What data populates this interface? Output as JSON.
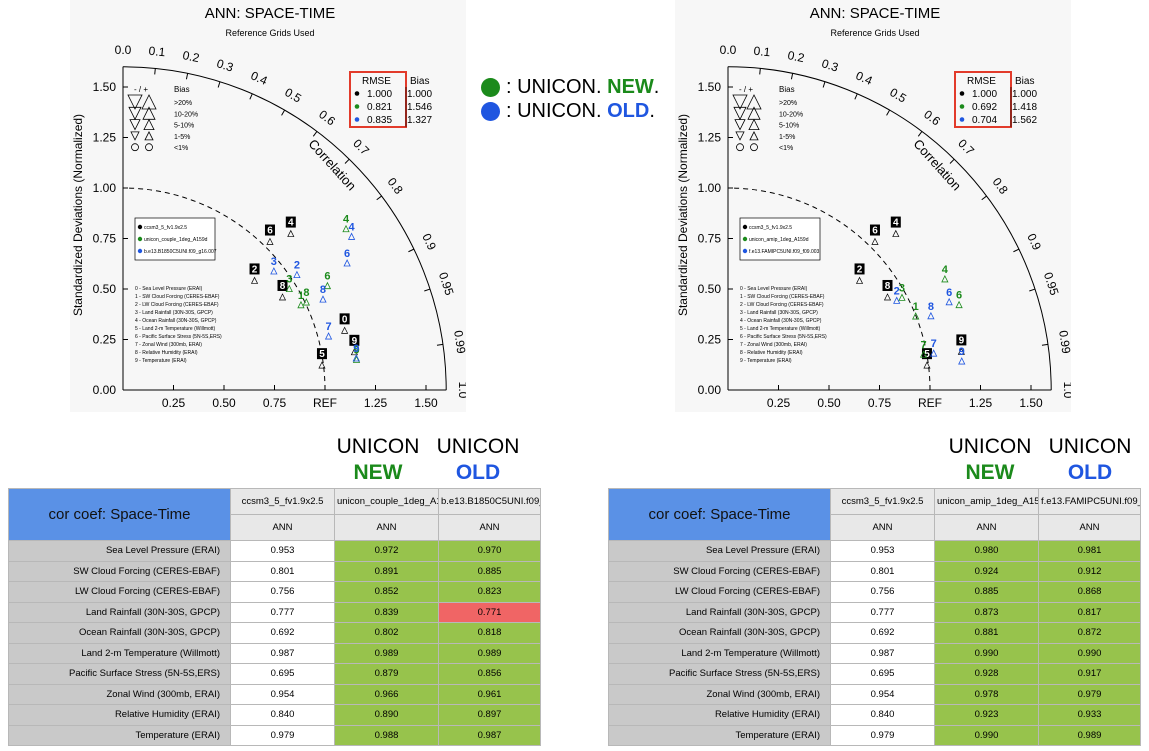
{
  "plots": [
    {
      "title": "ANN: SPACE-TIME",
      "subtitle": "Reference Grids Used",
      "ylabel": "Standardized Deviations (Normalized)",
      "corr_label": "Correlation",
      "ref_label": "REF",
      "x_ticks": [
        "0.25",
        "0.50",
        "0.75",
        "1.25",
        "1.50"
      ],
      "y_ticks": [
        "0.00",
        "0.25",
        "0.50",
        "0.75",
        "1.00",
        "1.25",
        "1.50"
      ],
      "corr_ticks": [
        "0.0",
        "0.1",
        "0.2",
        "0.3",
        "0.4",
        "0.5",
        "0.6",
        "0.7",
        "0.8",
        "0.9",
        "0.95",
        "0.99",
        "1.0"
      ],
      "bias_title": "Bias",
      "bias_header_sign": "- / +",
      "bias_levels": [
        ">20%",
        "10-20%",
        "5-10%",
        "1-5%",
        "<1%"
      ],
      "rmse_table": {
        "header": [
          "RMSE",
          "Bias"
        ],
        "rows": [
          {
            "rmse": "1.000",
            "bias": "1.000",
            "color": "#000000"
          },
          {
            "rmse": "0.821",
            "bias": "1.546",
            "color": "#1b8a1b"
          },
          {
            "rmse": "0.835",
            "bias": "1.327",
            "color": "#1f56e0"
          }
        ]
      },
      "cases": [
        {
          "name": "ccsm3_5_fv1.9x2.5",
          "color": "#000000"
        },
        {
          "name": "unicon_couple_1deg_A159d",
          "color": "#1b8a1b"
        },
        {
          "name": "b.e13.B1850C5UNI.f09_g16.007",
          "color": "#1f56e0"
        }
      ],
      "variables": [
        "0 - Sea Level Pressure (ERAI)",
        "1 - SW Cloud Forcing (CERES-EBAF)",
        "2 - LW Cloud Forcing (CERES-EBAF)",
        "3 - Land Rainfall (30N-30S, GPCP)",
        "4 - Ocean Rainfall (30N-30S, GPCP)",
        "5 - Land 2-m Temperature (Willmott)",
        "6 - Pacific Surface Stress (5N-5S,ERS)",
        "7 - Zonal Wind (300mb, ERAI)",
        "8 - Relative Humidity (ERAI)",
        "9 - Temperature (ERAI)"
      ]
    },
    {
      "title": "ANN: SPACE-TIME",
      "subtitle": "Reference Grids Used",
      "ylabel": "Standardized Deviations (Normalized)",
      "corr_label": "Correlation",
      "ref_label": "REF",
      "x_ticks": [
        "0.25",
        "0.50",
        "0.75",
        "1.25",
        "1.50"
      ],
      "y_ticks": [
        "0.00",
        "0.25",
        "0.50",
        "0.75",
        "1.00",
        "1.25",
        "1.50"
      ],
      "corr_ticks": [
        "0.0",
        "0.1",
        "0.2",
        "0.3",
        "0.4",
        "0.5",
        "0.6",
        "0.7",
        "0.8",
        "0.9",
        "0.95",
        "0.99",
        "1.0"
      ],
      "bias_title": "Bias",
      "bias_header_sign": "- / +",
      "bias_levels": [
        ">20%",
        "10-20%",
        "5-10%",
        "1-5%",
        "<1%"
      ],
      "rmse_table": {
        "header": [
          "RMSE",
          "Bias"
        ],
        "rows": [
          {
            "rmse": "1.000",
            "bias": "1.000",
            "color": "#000000"
          },
          {
            "rmse": "0.692",
            "bias": "1.418",
            "color": "#1b8a1b"
          },
          {
            "rmse": "0.704",
            "bias": "1.562",
            "color": "#1f56e0"
          }
        ]
      },
      "cases": [
        {
          "name": "ccsm3_5_fv1.9x2.5",
          "color": "#000000"
        },
        {
          "name": "unicon_amip_1deg_A159d",
          "color": "#1b8a1b"
        },
        {
          "name": "f.e13.FAMIPC5UNI.f09_f09.003",
          "color": "#1f56e0"
        }
      ],
      "variables": [
        "0 - Sea Level Pressure (ERAI)",
        "1 - SW Cloud Forcing (CERES-EBAF)",
        "2 - LW Cloud Forcing (CERES-EBAF)",
        "3 - Land Rainfall (30N-30S, GPCP)",
        "4 - Ocean Rainfall (30N-30S, GPCP)",
        "5 - Land 2-m Temperature (Willmott)",
        "6 - Pacific Surface Stress (5N-5S,ERS)",
        "7 - Zonal Wind (300mb, ERAI)",
        "8 - Relative Humidity (ERAI)",
        "9 - Temperature (ERAI)"
      ]
    }
  ],
  "legend": {
    "new_prefix": ": UNICON. ",
    "new_word": "NEW",
    "new_suffix": ".",
    "old_prefix": ": UNICON. ",
    "old_word": "OLD",
    "old_suffix": ".",
    "new_color": "#1b8a1b",
    "old_color": "#1f56e0"
  },
  "headers": [
    {
      "unicon": "UNICON",
      "new": "NEW",
      "unicon2": "UNICON",
      "old": "OLD"
    },
    {
      "unicon": "UNICON",
      "new": "NEW",
      "unicon2": "UNICON",
      "old": "OLD"
    }
  ],
  "tables": [
    {
      "title": "cor coef: Space-Time",
      "columns": [
        "ccsm3_5_fv1.9x2.5",
        "unicon_couple_1deg_A159d",
        "b.e13.B1850C5UNI.f09_g16.007"
      ],
      "subheader": "ANN",
      "rows": [
        {
          "label": "Sea Level Pressure (ERAI)",
          "values": [
            "0.953",
            "0.972",
            "0.970"
          ],
          "status": [
            "w",
            "g",
            "g"
          ]
        },
        {
          "label": "SW Cloud Forcing (CERES-EBAF)",
          "values": [
            "0.801",
            "0.891",
            "0.885"
          ],
          "status": [
            "w",
            "g",
            "g"
          ]
        },
        {
          "label": "LW Cloud Forcing (CERES-EBAF)",
          "values": [
            "0.756",
            "0.852",
            "0.823"
          ],
          "status": [
            "w",
            "g",
            "g"
          ]
        },
        {
          "label": "Land Rainfall (30N-30S, GPCP)",
          "values": [
            "0.777",
            "0.839",
            "0.771"
          ],
          "status": [
            "w",
            "g",
            "r"
          ]
        },
        {
          "label": "Ocean Rainfall (30N-30S, GPCP)",
          "values": [
            "0.692",
            "0.802",
            "0.818"
          ],
          "status": [
            "w",
            "g",
            "g"
          ]
        },
        {
          "label": "Land 2-m Temperature (Willmott)",
          "values": [
            "0.987",
            "0.989",
            "0.989"
          ],
          "status": [
            "w",
            "g",
            "g"
          ]
        },
        {
          "label": "Pacific Surface Stress (5N-5S,ERS)",
          "values": [
            "0.695",
            "0.879",
            "0.856"
          ],
          "status": [
            "w",
            "g",
            "g"
          ]
        },
        {
          "label": "Zonal Wind (300mb, ERAI)",
          "values": [
            "0.954",
            "0.966",
            "0.961"
          ],
          "status": [
            "w",
            "g",
            "g"
          ]
        },
        {
          "label": "Relative Humidity (ERAI)",
          "values": [
            "0.840",
            "0.890",
            "0.897"
          ],
          "status": [
            "w",
            "g",
            "g"
          ]
        },
        {
          "label": "Temperature (ERAI)",
          "values": [
            "0.979",
            "0.988",
            "0.987"
          ],
          "status": [
            "w",
            "g",
            "g"
          ]
        }
      ]
    },
    {
      "title": "cor coef: Space-Time",
      "columns": [
        "ccsm3_5_fv1.9x2.5",
        "unicon_amip_1deg_A159d",
        "f.e13.FAMIPC5UNI.f09_f09.003"
      ],
      "subheader": "ANN",
      "rows": [
        {
          "label": "Sea Level Pressure (ERAI)",
          "values": [
            "0.953",
            "0.980",
            "0.981"
          ],
          "status": [
            "w",
            "g",
            "g"
          ]
        },
        {
          "label": "SW Cloud Forcing (CERES-EBAF)",
          "values": [
            "0.801",
            "0.924",
            "0.912"
          ],
          "status": [
            "w",
            "g",
            "g"
          ]
        },
        {
          "label": "LW Cloud Forcing (CERES-EBAF)",
          "values": [
            "0.756",
            "0.885",
            "0.868"
          ],
          "status": [
            "w",
            "g",
            "g"
          ]
        },
        {
          "label": "Land Rainfall (30N-30S, GPCP)",
          "values": [
            "0.777",
            "0.873",
            "0.817"
          ],
          "status": [
            "w",
            "g",
            "g"
          ]
        },
        {
          "label": "Ocean Rainfall (30N-30S, GPCP)",
          "values": [
            "0.692",
            "0.881",
            "0.872"
          ],
          "status": [
            "w",
            "g",
            "g"
          ]
        },
        {
          "label": "Land 2-m Temperature (Willmott)",
          "values": [
            "0.987",
            "0.990",
            "0.990"
          ],
          "status": [
            "w",
            "g",
            "g"
          ]
        },
        {
          "label": "Pacific Surface Stress (5N-5S,ERS)",
          "values": [
            "0.695",
            "0.928",
            "0.917"
          ],
          "status": [
            "w",
            "g",
            "g"
          ]
        },
        {
          "label": "Zonal Wind (300mb, ERAI)",
          "values": [
            "0.954",
            "0.978",
            "0.979"
          ],
          "status": [
            "w",
            "g",
            "g"
          ]
        },
        {
          "label": "Relative Humidity (ERAI)",
          "values": [
            "0.840",
            "0.923",
            "0.933"
          ],
          "status": [
            "w",
            "g",
            "g"
          ]
        },
        {
          "label": "Temperature (ERAI)",
          "values": [
            "0.979",
            "0.990",
            "0.989"
          ],
          "status": [
            "w",
            "g",
            "g"
          ]
        }
      ]
    }
  ],
  "chart_data": [
    {
      "type": "scatter",
      "title": "ANN: SPACE-TIME",
      "subtitle": "Reference Grids Used",
      "ylabel": "Standardized Deviations (Normalized)",
      "xlim": [
        0,
        1.6
      ],
      "ylim": [
        0,
        1.6
      ],
      "series": [
        {
          "name": "ccsm3_5_fv1.9x2.5",
          "color": "#000000",
          "points": [
            {
              "id": "0",
              "std": 1.15,
              "corr": 0.954
            },
            {
              "id": "2",
              "std": 0.88,
              "corr": 0.74
            },
            {
              "id": "4",
              "std": 1.17,
              "corr": 0.71
            },
            {
              "id": "5",
              "std": 1.0,
              "corr": 0.985
            },
            {
              "id": "6",
              "std": 1.07,
              "corr": 0.68
            },
            {
              "id": "8",
              "std": 0.94,
              "corr": 0.84
            },
            {
              "id": "9",
              "std": 1.17,
              "corr": 0.979
            }
          ]
        },
        {
          "name": "unicon_couple_1deg_A159d",
          "color": "#1b8a1b",
          "points": [
            {
              "id": "1",
              "std": 0.99,
              "corr": 0.89
            },
            {
              "id": "3",
              "std": 0.98,
              "corr": 0.84
            },
            {
              "id": "4",
              "std": 1.38,
              "corr": 0.8
            },
            {
              "id": "6",
              "std": 1.15,
              "corr": 0.88
            },
            {
              "id": "8",
              "std": 1.02,
              "corr": 0.89
            },
            {
              "id": "9",
              "std": 1.17,
              "corr": 0.988
            }
          ]
        },
        {
          "name": "b.e13.B1850C5UNI.f09_g16.007",
          "color": "#1f56e0",
          "points": [
            {
              "id": "2",
              "std": 1.05,
              "corr": 0.82
            },
            {
              "id": "3",
              "std": 0.97,
              "corr": 0.77
            },
            {
              "id": "4",
              "std": 1.38,
              "corr": 0.82
            },
            {
              "id": "6",
              "std": 1.29,
              "corr": 0.86
            },
            {
              "id": "7",
              "std": 1.06,
              "corr": 0.96
            },
            {
              "id": "8",
              "std": 1.1,
              "corr": 0.9
            },
            {
              "id": "9",
              "std": 1.17,
              "corr": 0.987
            }
          ]
        }
      ]
    },
    {
      "type": "scatter",
      "title": "ANN: SPACE-TIME",
      "subtitle": "Reference Grids Used",
      "ylabel": "Standardized Deviations (Normalized)",
      "xlim": [
        0,
        1.6
      ],
      "ylim": [
        0,
        1.6
      ],
      "series": [
        {
          "name": "ccsm3_5_fv1.9x2.5",
          "color": "#000000",
          "points": [
            {
              "id": "2",
              "std": 0.88,
              "corr": 0.74
            },
            {
              "id": "4",
              "std": 1.17,
              "corr": 0.71
            },
            {
              "id": "5",
              "std": 1.0,
              "corr": 0.985
            },
            {
              "id": "6",
              "std": 1.07,
              "corr": 0.68
            },
            {
              "id": "8",
              "std": 0.94,
              "corr": 0.84
            },
            {
              "id": "9",
              "std": 1.18,
              "corr": 0.979
            }
          ]
        },
        {
          "name": "unicon_amip_1deg_A159d",
          "color": "#1b8a1b",
          "points": [
            {
              "id": "1",
              "std": 1.01,
              "corr": 0.92
            },
            {
              "id": "3",
              "std": 0.99,
              "corr": 0.87
            },
            {
              "id": "4",
              "std": 1.22,
              "corr": 0.88
            },
            {
              "id": "6",
              "std": 1.23,
              "corr": 0.93
            },
            {
              "id": "7",
              "std": 0.99,
              "corr": 0.978
            }
          ]
        },
        {
          "name": "f.e13.FAMIPC5UNI.f09_f09.003",
          "color": "#1f56e0",
          "points": [
            {
              "id": "2",
              "std": 0.96,
              "corr": 0.87
            },
            {
              "id": "6",
              "std": 1.19,
              "corr": 0.92
            },
            {
              "id": "7",
              "std": 1.04,
              "corr": 0.979
            },
            {
              "id": "8",
              "std": 1.08,
              "corr": 0.93
            },
            {
              "id": "9",
              "std": 1.17,
              "corr": 0.989
            }
          ]
        }
      ]
    }
  ]
}
